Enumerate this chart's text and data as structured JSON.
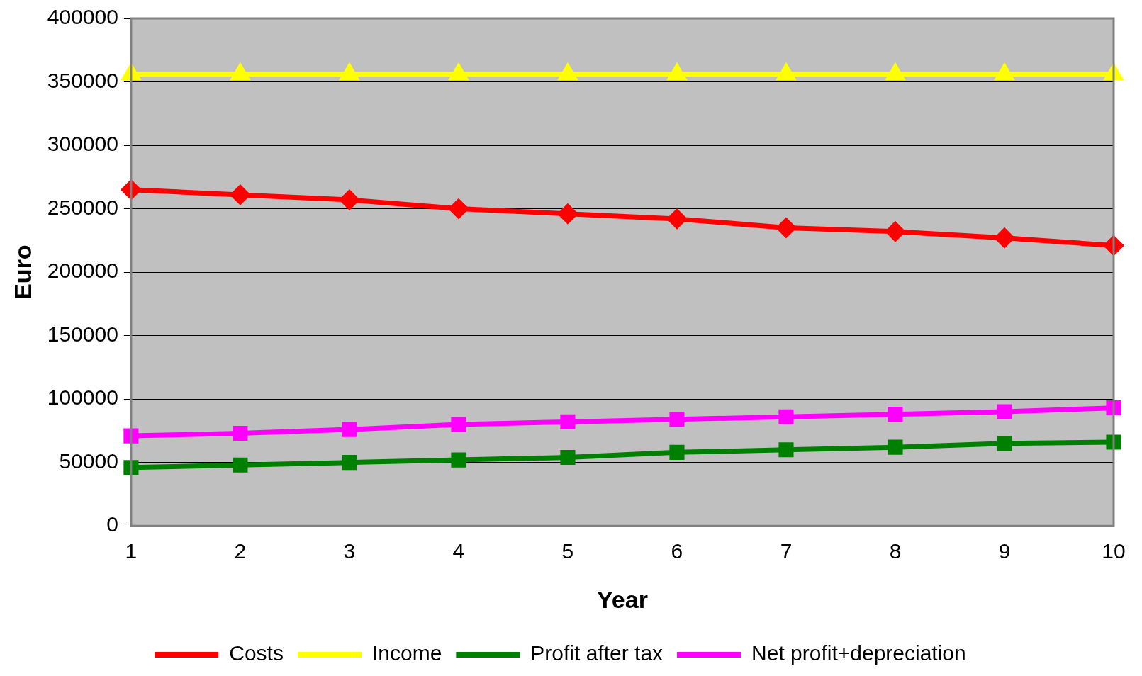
{
  "chart_data": {
    "type": "line",
    "xlabel": "Year",
    "ylabel": "Euro",
    "categories": [
      "1",
      "2",
      "3",
      "4",
      "5",
      "6",
      "7",
      "8",
      "9",
      "10"
    ],
    "series": [
      {
        "name": "Costs",
        "color": "#ff0000",
        "marker": "diamond",
        "values": [
          265000,
          261000,
          257000,
          250000,
          246000,
          242000,
          235000,
          232000,
          227000,
          221000
        ]
      },
      {
        "name": "Income",
        "color": "#ffff00",
        "marker": "triangle",
        "values": [
          356000,
          356000,
          356000,
          356000,
          356000,
          356000,
          356000,
          356000,
          356000,
          356000
        ]
      },
      {
        "name": "Profit after tax",
        "color": "#008000",
        "marker": "square",
        "values": [
          46000,
          48000,
          50000,
          52000,
          54000,
          58000,
          60000,
          62000,
          65000,
          66000
        ]
      },
      {
        "name": "Net profit+depreciation",
        "color": "#ff00ff",
        "marker": "square",
        "values": [
          71000,
          73000,
          76000,
          80000,
          82000,
          84000,
          86000,
          88000,
          90000,
          93000
        ]
      }
    ],
    "ylim": [
      0,
      400000
    ],
    "yticks": [
      0,
      50000,
      100000,
      150000,
      200000,
      250000,
      300000,
      350000,
      400000
    ],
    "grid": "y",
    "legend": "bottom"
  }
}
